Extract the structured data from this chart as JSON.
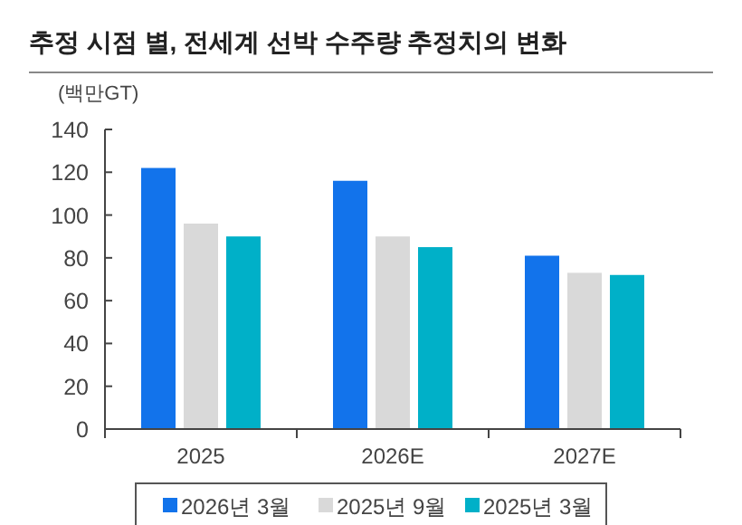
{
  "chart_data": {
    "type": "bar",
    "title": "추정 시점 별, 전세계 선박 수주량 추정치의 변화",
    "ylabel": "(백만GT)",
    "categories": [
      "2025",
      "2026E",
      "2027E"
    ],
    "series": [
      {
        "name": "2026년 3월",
        "color": "#1273eb",
        "values": [
          122,
          116,
          81
        ]
      },
      {
        "name": "2025년 9월",
        "color": "#d9d9d9",
        "values": [
          96,
          90,
          73
        ]
      },
      {
        "name": "2025년 3월",
        "color": "#00b0c8",
        "values": [
          90,
          85,
          72
        ]
      }
    ],
    "ylim": [
      0,
      140
    ],
    "yticks": [
      0,
      20,
      40,
      60,
      80,
      100,
      120,
      140
    ],
    "grid": false,
    "legend": "bottom"
  }
}
